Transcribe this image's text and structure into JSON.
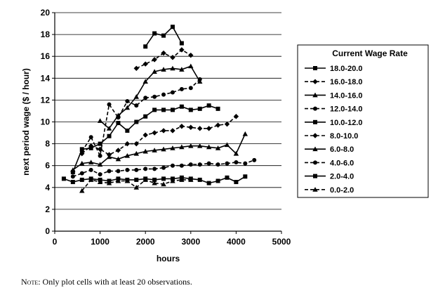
{
  "chart_data": {
    "type": "line",
    "xlabel": "hours",
    "ylabel": "next period wage ($ / hour)",
    "xlim": [
      0,
      5000
    ],
    "ylim": [
      0,
      20
    ],
    "xticks": [
      0,
      1000,
      2000,
      3000,
      4000,
      5000
    ],
    "yticks": [
      0,
      2,
      4,
      6,
      8,
      10,
      12,
      14,
      16,
      18,
      20
    ],
    "grid": "horizontal",
    "legend": {
      "title": "Current Wage Rate",
      "placement": "right"
    },
    "series": [
      {
        "name": "18.0-20.0",
        "marker": "square",
        "dash": "solid",
        "x": [
          2000,
          2200,
          2400,
          2600,
          2800
        ],
        "y": [
          16.9,
          18.1,
          17.9,
          18.7,
          17.2
        ]
      },
      {
        "name": "16.0-18.0",
        "marker": "diamond",
        "dash": "dashed",
        "x": [
          1800,
          2000,
          2200,
          2400,
          2600,
          2800,
          3000
        ],
        "y": [
          14.9,
          15.3,
          15.7,
          16.3,
          15.9,
          16.6,
          16.1
        ]
      },
      {
        "name": "14.0-16.0",
        "marker": "triangle",
        "dash": "solid",
        "x": [
          1000,
          1200,
          1400,
          1600,
          1800,
          2000,
          2200,
          2400,
          2600,
          2800,
          3000,
          3200
        ],
        "y": [
          10.1,
          9.4,
          10.6,
          11.3,
          12.3,
          13.7,
          14.6,
          14.8,
          14.9,
          14.8,
          15.1,
          13.7
        ]
      },
      {
        "name": "12.0-14.0",
        "marker": "circle",
        "dash": "dashed",
        "x": [
          600,
          800,
          1000,
          1200,
          1400,
          1600,
          1800,
          2000,
          2200,
          2400,
          2600,
          2800,
          3000,
          3200
        ],
        "y": [
          7.3,
          8.6,
          6.9,
          11.6,
          10.4,
          11.9,
          11.5,
          12.2,
          12.3,
          12.5,
          12.7,
          13.0,
          13.1,
          13.9
        ]
      },
      {
        "name": "10.0-12.0",
        "marker": "square",
        "dash": "solid",
        "x": [
          400,
          600,
          800,
          1000,
          1200,
          1400,
          1600,
          1800,
          2000,
          2200,
          2400,
          2600,
          2800,
          3000,
          3200,
          3400,
          3600
        ],
        "y": [
          5.4,
          7.5,
          7.6,
          8.0,
          8.7,
          9.9,
          9.2,
          10.0,
          10.5,
          11.1,
          11.1,
          11.1,
          11.4,
          11.1,
          11.2,
          11.5,
          11.2
        ]
      },
      {
        "name": "8.0-10.0",
        "marker": "diamond",
        "dash": "dashed",
        "x": [
          600,
          800,
          1000,
          1200,
          1400,
          1600,
          1800,
          2000,
          2200,
          2400,
          2600,
          2800,
          3000,
          3200,
          3400,
          3600,
          3800,
          4000
        ],
        "y": [
          7.1,
          7.8,
          7.5,
          7.0,
          7.4,
          8.0,
          8.0,
          8.8,
          9.0,
          9.2,
          9.2,
          9.6,
          9.5,
          9.4,
          9.4,
          9.7,
          9.8,
          10.5
        ]
      },
      {
        "name": "6.0-8.0",
        "marker": "triangle",
        "dash": "solid",
        "x": [
          400,
          600,
          800,
          1000,
          1200,
          1400,
          1600,
          1800,
          2000,
          2200,
          2400,
          2600,
          2800,
          3000,
          3200,
          3400,
          3600,
          3800,
          4000,
          4200
        ],
        "y": [
          5.6,
          6.2,
          6.3,
          6.1,
          6.8,
          6.6,
          6.9,
          7.1,
          7.3,
          7.4,
          7.5,
          7.6,
          7.7,
          7.8,
          7.8,
          7.7,
          7.6,
          7.9,
          7.1,
          8.9
        ]
      },
      {
        "name": "4.0-6.0",
        "marker": "circle",
        "dash": "dashed",
        "x": [
          400,
          600,
          800,
          1000,
          1200,
          1400,
          1600,
          1800,
          2000,
          2200,
          2400,
          2600,
          2800,
          3000,
          3200,
          3400,
          3600,
          3800,
          4000,
          4200,
          4400
        ],
        "y": [
          5.0,
          5.3,
          5.6,
          5.2,
          5.5,
          5.5,
          5.6,
          5.6,
          5.7,
          5.7,
          5.8,
          6.0,
          6.0,
          6.1,
          6.1,
          6.2,
          6.1,
          6.2,
          6.3,
          6.2,
          6.5
        ]
      },
      {
        "name": "2.0-4.0",
        "marker": "square",
        "dash": "solid",
        "x": [
          200,
          400,
          600,
          800,
          1000,
          1200,
          1400,
          1600,
          1800,
          2000,
          2200,
          2400,
          2600,
          2800,
          3000,
          3200,
          3400,
          3600,
          3800,
          4000,
          4200
        ],
        "y": [
          4.8,
          4.5,
          4.7,
          4.8,
          4.7,
          4.6,
          4.8,
          4.7,
          4.7,
          4.8,
          4.7,
          4.8,
          4.8,
          4.9,
          4.8,
          4.7,
          4.4,
          4.6,
          4.9,
          4.5,
          5.0
        ]
      },
      {
        "name": "0.0-2.0",
        "marker": "triangle",
        "dash": "dashed",
        "x": [
          600,
          800,
          1000,
          1200,
          1400,
          1600,
          1800,
          2000,
          2200,
          2400,
          2600,
          2800,
          3000
        ],
        "y": [
          3.7,
          4.7,
          4.5,
          4.4,
          4.6,
          4.6,
          4.0,
          4.7,
          4.4,
          4.3,
          4.6,
          4.7,
          4.7
        ]
      }
    ]
  },
  "note": {
    "prefix": "Note",
    "text": ": Only plot cells with at least 20 observations."
  }
}
